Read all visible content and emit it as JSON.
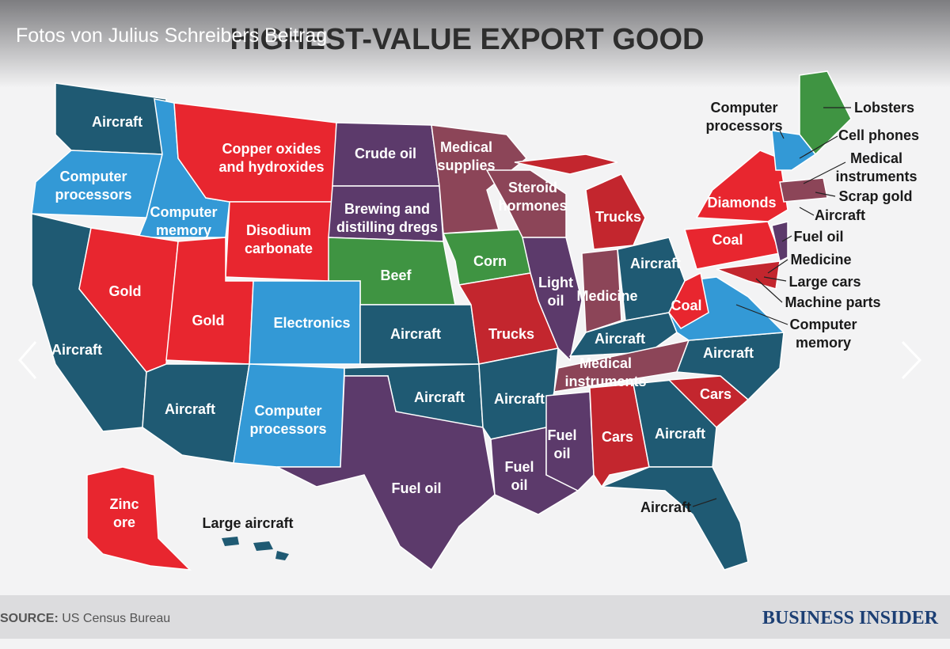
{
  "header": {
    "caption": "Fotos von Julius Schreibers Beitrag",
    "title": "HIGHEST-VALUE EXPORT GOOD"
  },
  "map": {
    "labels": [
      [
        "Aircraft"
      ],
      [
        "Computer",
        "processors"
      ],
      [
        "Computer",
        "memory"
      ],
      [
        "Copper oxides",
        "and hydroxides"
      ],
      [
        "Disodium",
        "carbonate"
      ],
      [
        "Crude oil"
      ],
      [
        "Brewing and",
        "distilling dregs"
      ],
      [
        "Medical",
        "supplies"
      ],
      [
        "Steroid",
        "hormones"
      ],
      [
        "Trucks"
      ],
      [
        "Gold"
      ],
      [
        "Gold"
      ],
      [
        "Aircraft"
      ],
      [
        "Electronics"
      ],
      [
        "Beef"
      ],
      [
        "Corn"
      ],
      [
        "Light",
        "oil"
      ],
      [
        "Medicine"
      ],
      [
        "Aircraft"
      ],
      [
        "Trucks"
      ],
      [
        "Aircraft"
      ],
      [
        "Aircraft"
      ],
      [
        "Aircraft"
      ],
      [
        "Computer",
        "processors"
      ],
      [
        "Aircraft"
      ],
      [
        "Aircraft"
      ],
      [
        "Medical",
        "instruments"
      ],
      [
        "Fuel oil"
      ],
      [
        "Fuel",
        "oil"
      ],
      [
        "Fuel",
        "oil"
      ],
      [
        "Cars"
      ],
      [
        "Aircraft"
      ],
      [
        "Cars"
      ],
      [
        "Aircraft"
      ],
      [
        "Coal"
      ],
      [
        "Coal"
      ],
      [
        "Diamonds"
      ],
      [
        "Zinc",
        "ore"
      ],
      [
        "Large aircraft"
      ],
      [
        "Aircraft"
      ],
      [
        "Computer",
        "processors"
      ],
      [
        "Lobsters"
      ],
      [
        "Cell phones"
      ],
      [
        "Medical",
        "instruments"
      ],
      [
        "Scrap gold"
      ],
      [
        "Aircraft"
      ],
      [
        "Fuel oil"
      ],
      [
        "Medicine"
      ],
      [
        "Large cars"
      ],
      [
        "Machine parts"
      ],
      [
        "Computer",
        "memory"
      ]
    ]
  },
  "footer": {
    "source_label": "SOURCE:",
    "source": "US Census Bureau",
    "brand": "BUSINESS INSIDER"
  }
}
